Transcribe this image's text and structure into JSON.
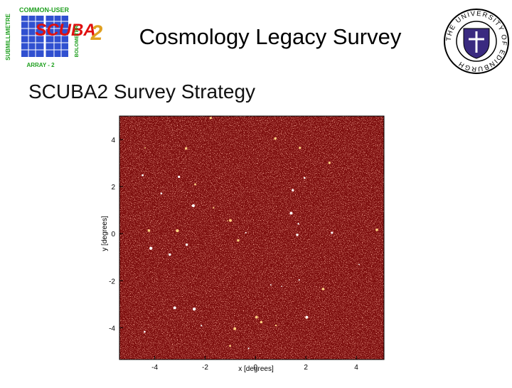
{
  "header": {
    "title": "Cosmology Legacy Survey",
    "subtitle": "SCUBA2 Survey Strategy"
  },
  "logo_left": {
    "top": "COMMON-USER",
    "name": "SCUBA",
    "number": "2",
    "left": "SUBMILLIMETRE",
    "right": "BOLOMETER",
    "bottom": "ARRAY - 2"
  },
  "logo_right": {
    "ring": "THE UNIVERSITY OF EDINBURGH"
  },
  "figure": {
    "xlabel": "x  [degrees]",
    "ylabel": "y  [degrees]",
    "xlim": [
      -5.4,
      5.1
    ],
    "ylim": [
      -5.35,
      5.0
    ],
    "xticks": [
      -4,
      -2,
      0,
      2,
      4
    ],
    "yticks": [
      -4,
      -2,
      0,
      2,
      4
    ]
  }
}
